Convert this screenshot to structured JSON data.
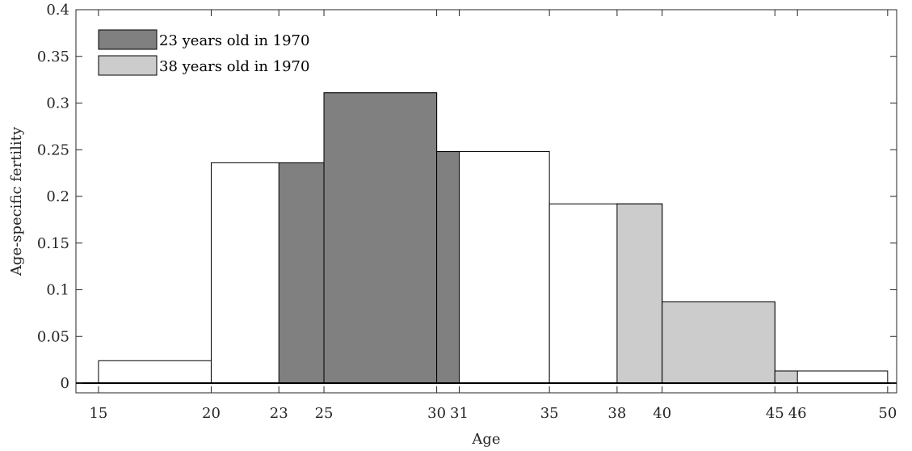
{
  "chart_data": {
    "type": "bar",
    "title": "",
    "xlabel": "Age",
    "ylabel": "Age-specific fertility",
    "xlim": [
      14,
      50.4
    ],
    "ylim": [
      0,
      0.4
    ],
    "grid": false,
    "legend_position": "top-left",
    "xticks": [
      15,
      20,
      23,
      25,
      30,
      31,
      35,
      38,
      40,
      45,
      46,
      50
    ],
    "xtick_labels": [
      "15",
      "20",
      "23",
      "25",
      "30",
      "31",
      "35",
      "38",
      "40",
      "45",
      "46",
      "50"
    ],
    "yticks": [
      0,
      0.05,
      0.1,
      0.15,
      0.2,
      0.25,
      0.3,
      0.35,
      0.4
    ],
    "ytick_labels": [
      "0",
      "0.05",
      "0.1",
      "0.15",
      "0.2",
      "0.25",
      "0.3",
      "0.35",
      "0.4"
    ],
    "outline": {
      "fill": "#ffffff",
      "bins": [
        {
          "start": 15,
          "end": 20,
          "value": 0.024
        },
        {
          "start": 20,
          "end": 25,
          "value": 0.236
        },
        {
          "start": 25,
          "end": 30,
          "value": 0.311
        },
        {
          "start": 30,
          "end": 35,
          "value": 0.248
        },
        {
          "start": 35,
          "end": 40,
          "value": 0.192
        },
        {
          "start": 40,
          "end": 45,
          "value": 0.087
        },
        {
          "start": 45,
          "end": 50,
          "value": 0.013
        }
      ]
    },
    "series": [
      {
        "name": "23 years old in 1970",
        "color": "#808080",
        "steps": [
          {
            "start": 23,
            "end": 25,
            "value": 0.236
          },
          {
            "start": 25,
            "end": 30,
            "value": 0.311
          },
          {
            "start": 30,
            "end": 31,
            "value": 0.248
          }
        ]
      },
      {
        "name": "38 years old in 1970",
        "color": "#cccccc",
        "steps": [
          {
            "start": 38,
            "end": 40,
            "value": 0.192
          },
          {
            "start": 40,
            "end": 45,
            "value": 0.087
          },
          {
            "start": 45,
            "end": 46,
            "value": 0.013
          }
        ]
      }
    ]
  }
}
